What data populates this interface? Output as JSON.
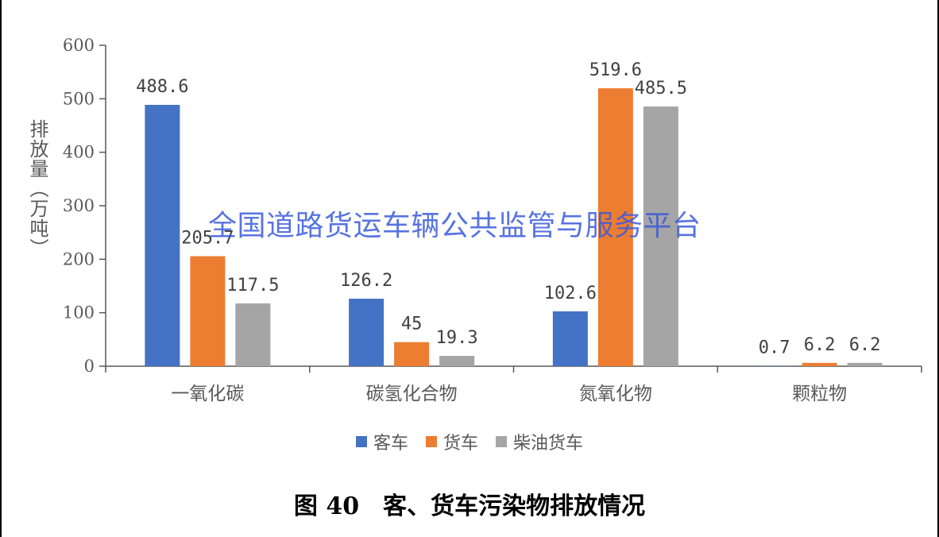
{
  "chart_data": {
    "type": "bar",
    "title": "",
    "categories": [
      "一氧化碳",
      "碳氢化合物",
      "氮氧化物",
      "颗粒物"
    ],
    "series": [
      {
        "name": "客车",
        "color": "#4472c4",
        "values": [
          488.6,
          126.2,
          102.6,
          0.7
        ]
      },
      {
        "name": "货车",
        "color": "#ed7d31",
        "values": [
          205.7,
          45,
          519.6,
          6.2
        ]
      },
      {
        "name": "柴油货车",
        "color": "#a5a5a5",
        "values": [
          117.5,
          19.3,
          485.5,
          6.2
        ]
      }
    ],
    "data_labels": [
      [
        "488.6",
        "126.2",
        "102.6",
        "0.7"
      ],
      [
        "205.7",
        "45",
        "519.6",
        "6.2"
      ],
      [
        "117.5",
        "19.3",
        "485.5",
        "6.2"
      ]
    ],
    "xlabel": "",
    "ylabel": "排放量（万吨）",
    "ylim": [
      0,
      600
    ],
    "yticks": [
      0,
      100,
      200,
      300,
      400,
      500,
      600
    ],
    "grid": false,
    "legend_position": "bottom"
  },
  "watermark": "全国道路货运车辆公共监管与服务平台",
  "caption": "图 40　客、货车污染物排放情况"
}
